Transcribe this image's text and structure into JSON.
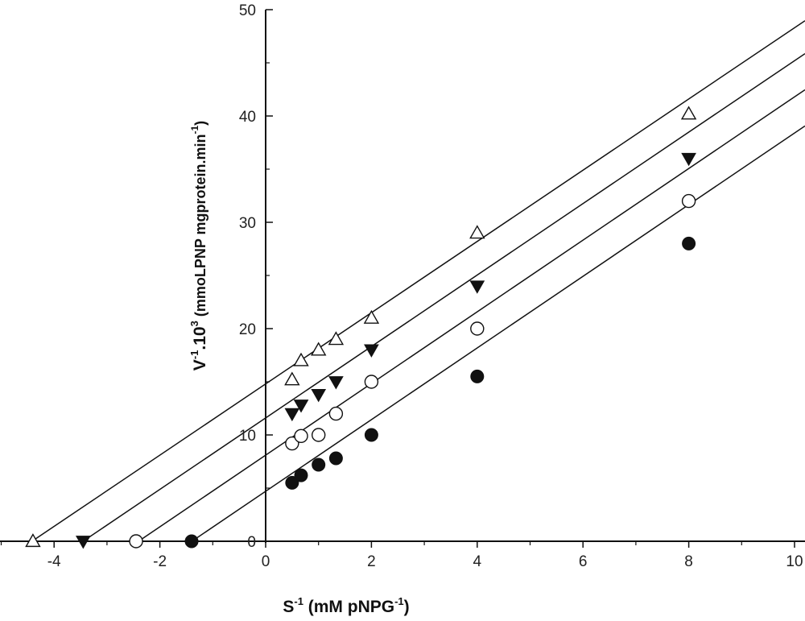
{
  "chart_data": {
    "type": "scatter",
    "title": "",
    "xlabel": {
      "base": "S",
      "exp": "-1",
      "mid": " (mM pNPG",
      "exp2": "-1",
      "end": ")"
    },
    "ylabel": {
      "base": "V",
      "exp": "-1",
      "mid": ".10",
      "exp2": "3",
      "unit": "  (mmoLPNP mgprotein.min",
      "exp3": "-1",
      "end": ")"
    },
    "xlim": [
      -5,
      10
    ],
    "ylim": [
      0,
      50
    ],
    "x_ticks": [
      -4,
      -2,
      0,
      2,
      4,
      6,
      8,
      10
    ],
    "y_ticks": [
      0,
      10,
      20,
      30,
      40,
      50
    ],
    "grid": false,
    "legend": "none",
    "series": [
      {
        "marker": "open-triangle",
        "x": [
          -4.4,
          0.5,
          0.67,
          1.0,
          1.33,
          2.0,
          4.0,
          8.0
        ],
        "y": [
          0,
          15.2,
          17.0,
          18.0,
          19.0,
          21.0,
          29.0,
          40.2
        ],
        "fit": {
          "slope": 3.35,
          "intercept": 14.8
        }
      },
      {
        "marker": "filled-triangle-down",
        "x": [
          -3.45,
          0.5,
          0.67,
          1.0,
          1.33,
          2.0,
          4.0,
          8.0
        ],
        "y": [
          0,
          12.0,
          12.8,
          13.8,
          15.0,
          18.0,
          24.0,
          36.0
        ],
        "fit": {
          "slope": 3.36,
          "intercept": 11.6
        }
      },
      {
        "marker": "open-circle",
        "x": [
          -2.45,
          0.5,
          0.67,
          1.0,
          1.33,
          2.0,
          4.0,
          8.0
        ],
        "y": [
          0,
          9.2,
          9.9,
          10.0,
          12.0,
          15.0,
          20.0,
          32.0
        ],
        "fit": {
          "slope": 3.37,
          "intercept": 8.1
        }
      },
      {
        "marker": "filled-circle",
        "x": [
          -1.4,
          0.5,
          0.67,
          1.0,
          1.33,
          2.0,
          4.0,
          8.0
        ],
        "y": [
          0,
          5.5,
          6.2,
          7.2,
          7.8,
          10.0,
          15.5,
          28.0
        ],
        "fit": {
          "slope": 3.37,
          "intercept": 4.7
        }
      }
    ]
  }
}
